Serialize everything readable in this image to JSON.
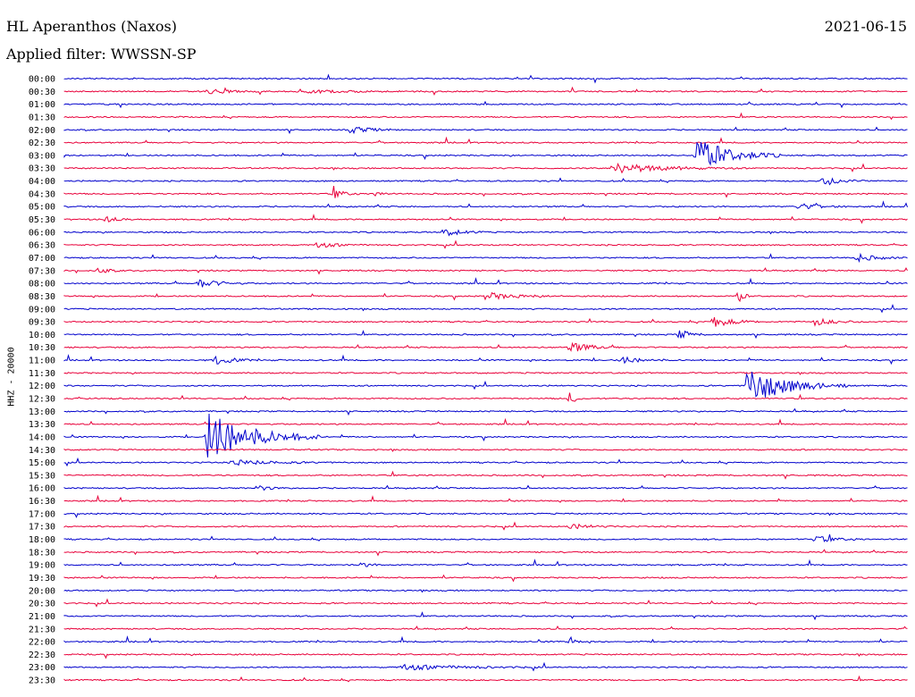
{
  "header": {
    "station": "HL Aperanthos (Naxos)",
    "date": "2021-06-15",
    "filter": "Applied filter: WWSSN-SP"
  },
  "colors": {
    "trace_a": "#0000cc",
    "trace_b": "#e8003a",
    "background": "#ffffff",
    "text": "#000000"
  },
  "chart_data": {
    "type": "line",
    "title": "HL Aperanthos (Naxos)",
    "subtitle": "Applied filter: WWSSN-SP",
    "xlabel": "",
    "ylabel": "HHZ - 20000",
    "grid": false,
    "legend": "none",
    "row_labels": [
      "00:00",
      "00:30",
      "01:00",
      "01:30",
      "02:00",
      "02:30",
      "03:00",
      "03:30",
      "04:00",
      "04:30",
      "05:00",
      "05:30",
      "06:00",
      "06:30",
      "07:00",
      "07:30",
      "08:00",
      "08:30",
      "09:00",
      "09:30",
      "10:00",
      "10:30",
      "11:00",
      "11:30",
      "12:00",
      "12:30",
      "13:00",
      "13:30",
      "14:00",
      "14:30",
      "15:00",
      "15:30",
      "16:00",
      "16:30",
      "17:00",
      "17:30",
      "18:00",
      "18:30",
      "19:00",
      "19:30",
      "20:00",
      "20:30",
      "21:00",
      "21:30",
      "22:00",
      "22:30",
      "23:00",
      "23:30"
    ],
    "row_colors": [
      "trace_a",
      "trace_b"
    ],
    "events": [
      {
        "row": 1,
        "x": 0.17,
        "amp": 3,
        "dur": 0.02
      },
      {
        "row": 1,
        "x": 0.29,
        "amp": 2,
        "dur": 0.04
      },
      {
        "row": 4,
        "x": 0.34,
        "amp": 4,
        "dur": 0.02
      },
      {
        "row": 6,
        "x": 0.75,
        "amp": 20,
        "dur": 0.035
      },
      {
        "row": 7,
        "x": 0.65,
        "amp": 6,
        "dur": 0.05
      },
      {
        "row": 8,
        "x": 0.9,
        "amp": 5,
        "dur": 0.02
      },
      {
        "row": 9,
        "x": 0.32,
        "amp": 6,
        "dur": 0.01
      },
      {
        "row": 9,
        "x": 0.37,
        "amp": 5,
        "dur": 0.005
      },
      {
        "row": 10,
        "x": 0.87,
        "amp": 4,
        "dur": 0.02
      },
      {
        "row": 11,
        "x": 0.05,
        "amp": 4,
        "dur": 0.01
      },
      {
        "row": 12,
        "x": 0.45,
        "amp": 4,
        "dur": 0.02
      },
      {
        "row": 13,
        "x": 0.3,
        "amp": 3,
        "dur": 0.02
      },
      {
        "row": 14,
        "x": 0.94,
        "amp": 4,
        "dur": 0.02
      },
      {
        "row": 15,
        "x": 0.04,
        "amp": 4,
        "dur": 0.01
      },
      {
        "row": 16,
        "x": 0.16,
        "amp": 5,
        "dur": 0.02
      },
      {
        "row": 17,
        "x": 0.5,
        "amp": 4,
        "dur": 0.03
      },
      {
        "row": 17,
        "x": 0.8,
        "amp": 8,
        "dur": 0.005
      },
      {
        "row": 19,
        "x": 0.77,
        "amp": 6,
        "dur": 0.02
      },
      {
        "row": 19,
        "x": 0.89,
        "amp": 4,
        "dur": 0.02
      },
      {
        "row": 20,
        "x": 0.73,
        "amp": 6,
        "dur": 0.01
      },
      {
        "row": 21,
        "x": 0.6,
        "amp": 6,
        "dur": 0.02
      },
      {
        "row": 22,
        "x": 0.18,
        "amp": 6,
        "dur": 0.015
      },
      {
        "row": 22,
        "x": 0.66,
        "amp": 4,
        "dur": 0.02
      },
      {
        "row": 24,
        "x": 0.81,
        "amp": 22,
        "dur": 0.04
      },
      {
        "row": 25,
        "x": 0.6,
        "amp": 8,
        "dur": 0.005
      },
      {
        "row": 28,
        "x": 0.17,
        "amp": 30,
        "dur": 0.045
      },
      {
        "row": 30,
        "x": 0.2,
        "amp": 3,
        "dur": 0.04
      },
      {
        "row": 32,
        "x": 0.23,
        "amp": 4,
        "dur": 0.01
      },
      {
        "row": 35,
        "x": 0.6,
        "amp": 3,
        "dur": 0.02
      },
      {
        "row": 36,
        "x": 0.89,
        "amp": 4,
        "dur": 0.02
      },
      {
        "row": 38,
        "x": 0.35,
        "amp": 3,
        "dur": 0.01
      },
      {
        "row": 44,
        "x": 0.6,
        "amp": 5,
        "dur": 0.005
      },
      {
        "row": 46,
        "x": 0.4,
        "amp": 3,
        "dur": 0.06
      }
    ]
  }
}
